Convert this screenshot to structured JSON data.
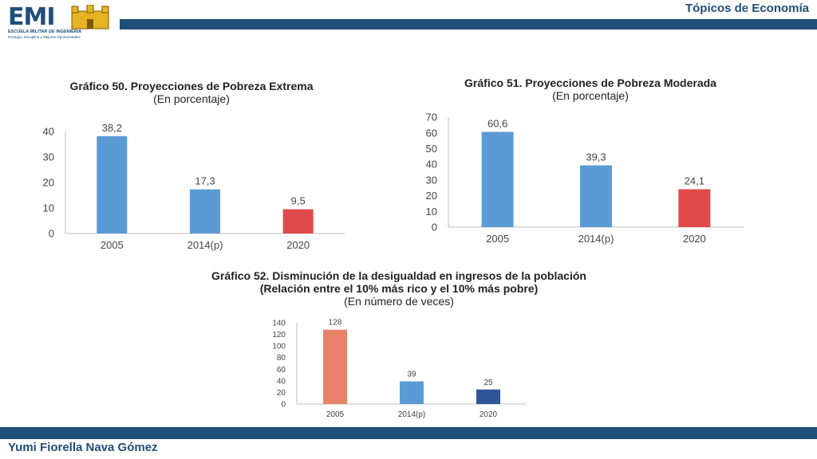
{
  "header": {
    "topic": "Tópicos de Economía",
    "logo_text": "EMI",
    "logo_sub1": "ESCUELA MILITAR DE INGENIERIA",
    "logo_sub2": "Prestigio, Disciplina y Mejores Oportunidades"
  },
  "footer": {
    "author": "Yumi Fiorella Nava Gómez"
  },
  "colors": {
    "brand": "#1f4e79",
    "blue_bar": "#5b9bd5",
    "red_bar": "#e04a4a",
    "salmon_bar": "#e8826a",
    "dark_blue_bar": "#2e5597"
  },
  "chart_data": [
    {
      "type": "bar",
      "title": "Gráfico 50. Proyecciones de Pobreza Extrema",
      "subtitle": "(En porcentaje)",
      "categories": [
        "2005",
        "2014(p)",
        "2020"
      ],
      "values": [
        38.2,
        17.3,
        9.5
      ],
      "labels": [
        "38,2",
        "17,3",
        "9,5"
      ],
      "bar_colors": [
        "#5b9bd5",
        "#5b9bd5",
        "#e04a4a"
      ],
      "yticks": [
        "0",
        "10",
        "20",
        "30",
        "40"
      ],
      "ylim": [
        0,
        40
      ]
    },
    {
      "type": "bar",
      "title": "Gráfico 51. Proyecciones de Pobreza Moderada",
      "subtitle": "(En porcentaje)",
      "categories": [
        "2005",
        "2014(p)",
        "2020"
      ],
      "values": [
        60.6,
        39.3,
        24.1
      ],
      "labels": [
        "60,6",
        "39,3",
        "24,1"
      ],
      "bar_colors": [
        "#5b9bd5",
        "#5b9bd5",
        "#e04a4a"
      ],
      "yticks": [
        "0",
        "10",
        "20",
        "30",
        "40",
        "50",
        "60",
        "70"
      ],
      "ylim": [
        0,
        70
      ]
    },
    {
      "type": "bar",
      "title": "Gráfico 52. Disminución de la desigualdad en ingresos de la población",
      "title2": "(Relación entre el 10% más rico y el 10% más pobre)",
      "subtitle": "(En número de veces)",
      "categories": [
        "2005",
        "2014(p)",
        "2020"
      ],
      "values": [
        128,
        39,
        25
      ],
      "labels": [
        "128",
        "39",
        "25"
      ],
      "bar_colors": [
        "#e8826a",
        "#5b9bd5",
        "#2e5597"
      ],
      "yticks": [
        "0",
        "20",
        "40",
        "60",
        "80",
        "100",
        "120",
        "140"
      ],
      "ylim": [
        0,
        140
      ]
    }
  ]
}
